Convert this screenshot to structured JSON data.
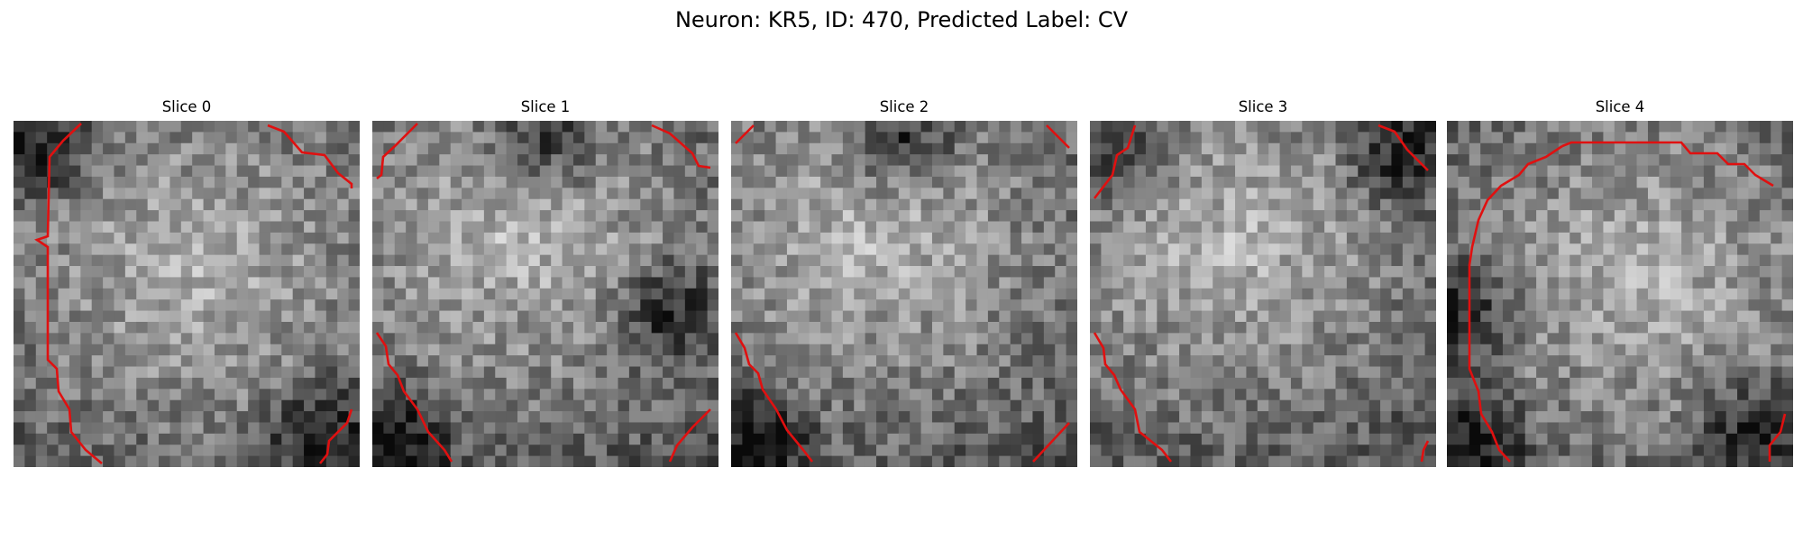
{
  "figure": {
    "title": "Neuron: KR5, ID: 470, Predicted Label: CV"
  },
  "colors": {
    "contour": "#e01010",
    "background": "#ffffff",
    "colormap": "gray"
  },
  "panels": [
    {
      "title": "Slice 0",
      "bright_center": [
        0.52,
        0.42
      ],
      "dark_corners": [
        "bottom-right",
        "top-left"
      ],
      "seed": 11
    },
    {
      "title": "Slice 1",
      "bright_center": [
        0.42,
        0.35
      ],
      "dark_corners": [
        "top-center",
        "right-middle",
        "bottom-left"
      ],
      "seed": 23
    },
    {
      "title": "Slice 2",
      "bright_center": [
        0.4,
        0.35
      ],
      "dark_corners": [
        "bottom-left",
        "top-center"
      ],
      "seed": 37
    },
    {
      "title": "Slice 3",
      "bright_center": [
        0.4,
        0.35
      ],
      "dark_corners": [
        "top-right",
        "top-left"
      ],
      "seed": 41
    },
    {
      "title": "Slice 4",
      "bright_center": [
        0.55,
        0.45
      ],
      "dark_corners": [
        "left-middle",
        "bottom-left",
        "bottom-right"
      ],
      "seed": 53
    }
  ]
}
